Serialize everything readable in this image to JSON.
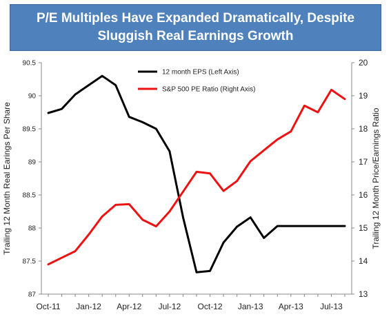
{
  "title": {
    "line1": "P/E Multiples Have Expanded Dramatically, Despite",
    "line2": "Sluggish Real Earnings Growth"
  },
  "colors": {
    "title_background": "#4f81bd",
    "title_text": "#ffffff",
    "eps_series": "#000000",
    "pe_series": "#ee1111"
  },
  "chart_data": {
    "type": "line",
    "title": "P/E Multiples Have Expanded Dramatically, Despite Sluggish Real Earnings Growth",
    "x": [
      "Oct-11",
      "Nov-11",
      "Dec-11",
      "Jan-12",
      "Feb-12",
      "Mar-12",
      "Apr-12",
      "May-12",
      "Jun-12",
      "Jul-12",
      "Aug-12",
      "Sep-12",
      "Oct-12",
      "Nov-12",
      "Dec-12",
      "Jan-13",
      "Feb-13",
      "Mar-13",
      "Apr-13",
      "May-13",
      "Jun-13",
      "Jul-13",
      "Aug-13"
    ],
    "x_tick_labels": [
      "Oct-11",
      "Jan-12",
      "Apr-12",
      "Jul-12",
      "Oct-12",
      "Jan-13",
      "Apr-13",
      "Jul-13"
    ],
    "y_left": {
      "label": "Trailing 12 Month Real Earings Per Share",
      "ylim": [
        87,
        90.5
      ],
      "ticks": [
        "87",
        "87.5",
        "88",
        "88.5",
        "89",
        "89.5",
        "90",
        "90.5"
      ]
    },
    "y_right": {
      "label": "Trailing 12 Month Price/Earnings Ratio",
      "ylim": [
        13,
        20
      ],
      "ticks": [
        "13",
        "14",
        "15",
        "16",
        "17",
        "18",
        "19",
        "20"
      ]
    },
    "series": [
      {
        "name": "12 month EPS (Left Axis)",
        "axis": "left",
        "color": "#000000",
        "values": [
          89.74,
          89.8,
          90.02,
          90.16,
          90.3,
          90.16,
          89.68,
          89.6,
          89.5,
          89.16,
          88.16,
          87.33,
          87.35,
          87.78,
          88.02,
          88.16,
          87.85,
          88.03,
          88.03,
          88.03,
          88.03,
          88.03,
          88.03
        ]
      },
      {
        "name": "S&P 500 PE Ratio (Right Axis)",
        "axis": "right",
        "color": "#ee1111",
        "values": [
          13.9,
          14.1,
          14.3,
          14.8,
          15.35,
          15.7,
          15.72,
          15.25,
          15.05,
          15.5,
          16.1,
          16.7,
          16.65,
          16.12,
          16.42,
          17.02,
          17.35,
          17.68,
          17.92,
          18.7,
          18.5,
          19.18,
          18.9
        ]
      }
    ],
    "legend_position": "top-center",
    "grid": false
  }
}
